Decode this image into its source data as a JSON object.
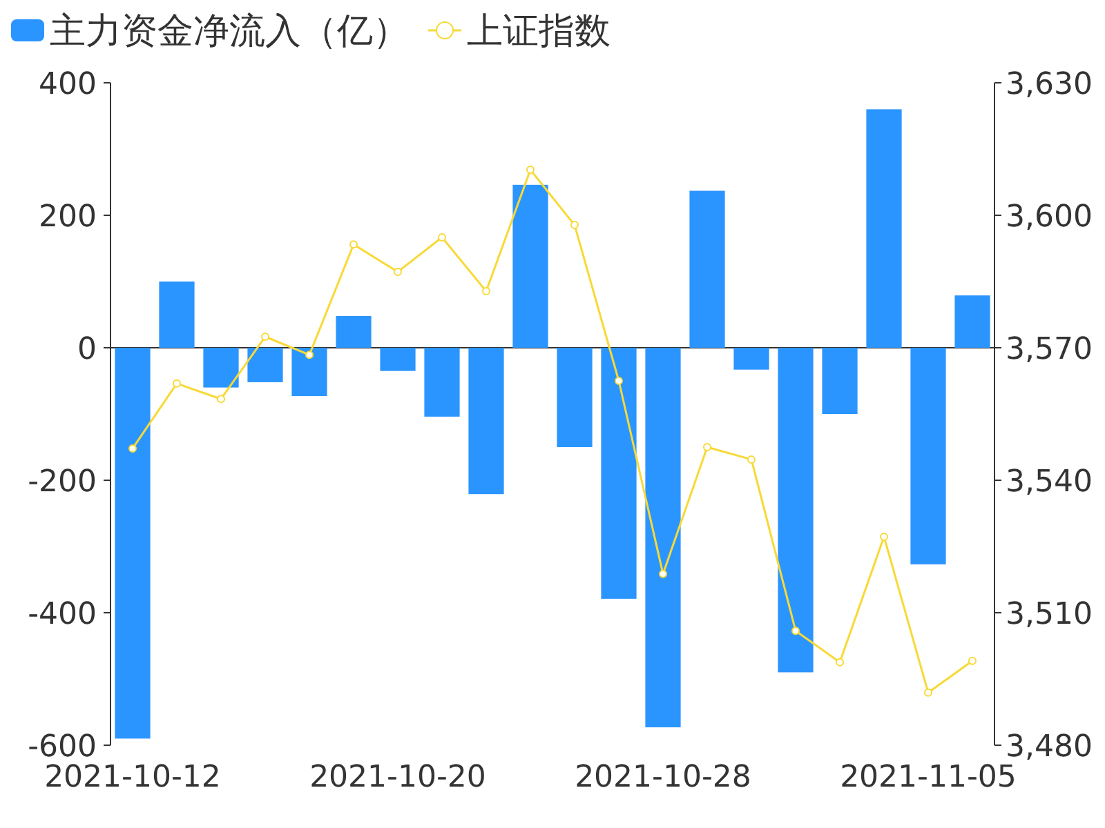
{
  "chart_data": {
    "type": "bar",
    "categories": [
      "2021-10-12",
      null,
      null,
      null,
      null,
      null,
      "2021-10-20",
      null,
      null,
      null,
      null,
      null,
      "2021-10-28",
      null,
      null,
      null,
      null,
      null,
      "2021-11-05",
      null
    ],
    "series": [
      {
        "name": "主力资金净流入（亿）",
        "color": "#2b95ff",
        "values": [
          -590,
          100,
          -60,
          -52,
          -73,
          48,
          -35,
          -104,
          -221,
          246,
          -150,
          -379,
          -573,
          237,
          -33,
          -490,
          -100,
          360,
          -327,
          79
        ]
      },
      {
        "name": "上证指数",
        "type": "line",
        "axis": "y2",
        "color": "#f8d936",
        "marker": "circle",
        "values": [
          3547.2,
          3561.9,
          3558.4,
          3572.5,
          3568.4,
          3593.4,
          3587.2,
          3595,
          3582.8,
          3610.3,
          3597.8,
          3562.5,
          3518.8,
          3547.5,
          3544.7,
          3505.9,
          3498.8,
          3527.2,
          3491.9,
          3499.1
        ]
      }
    ],
    "ylim": [
      -600,
      400
    ],
    "yticks": [
      -600,
      -400,
      -200,
      0,
      200,
      400
    ],
    "y2lim": [
      3480,
      3630
    ],
    "y2ticks": [
      {
        "value": 3480,
        "label": "3,480"
      },
      {
        "value": 3510,
        "label": "3,510"
      },
      {
        "value": 3540,
        "label": "3,540"
      },
      {
        "value": 3570,
        "label": "3,570"
      },
      {
        "value": 3600,
        "label": "3,600"
      },
      {
        "value": 3630,
        "label": "3,630"
      }
    ],
    "legend": "top left"
  }
}
